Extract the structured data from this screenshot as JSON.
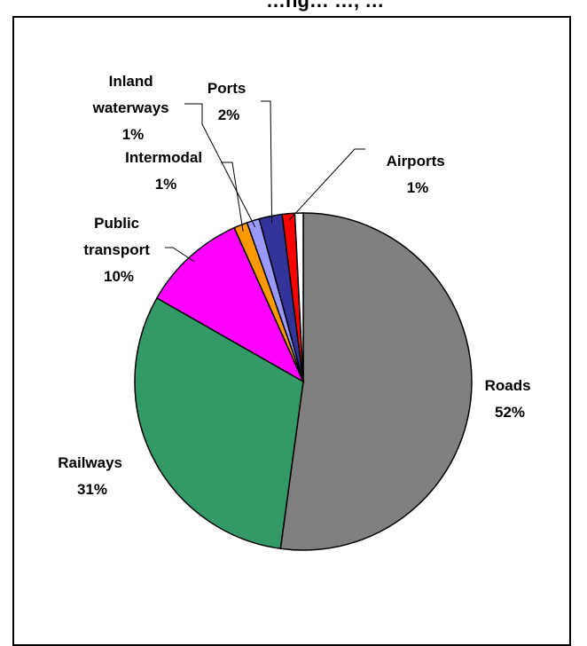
{
  "chart_data": {
    "type": "pie",
    "title": "…ng… …, …",
    "slices": [
      {
        "name": "Roads",
        "value": 52,
        "percent_label": "52%",
        "color": "#808080"
      },
      {
        "name": "Railways",
        "value": 31,
        "percent_label": "31%",
        "color": "#339966"
      },
      {
        "name": "Public transport",
        "value": 10,
        "percent_label": "10%",
        "color": "#ff00ff"
      },
      {
        "name": "Intermodal",
        "value": 1.3,
        "percent_label": "1%",
        "color": "#ff9900"
      },
      {
        "name": "Inland waterways",
        "value": 1.2,
        "percent_label": "1%",
        "color": "#9999ff"
      },
      {
        "name": "Ports",
        "value": 2.2,
        "percent_label": "2%",
        "color": "#333399"
      },
      {
        "name": "Airports",
        "value": 1.2,
        "percent_label": "1%",
        "color": "#ff0000"
      },
      {
        "name": "",
        "value": 0.8,
        "percent_label": "",
        "color": "#ffffff"
      }
    ],
    "label_lines": {
      "roads": [
        "Roads",
        "52%"
      ],
      "railways": [
        "Railways",
        "31%"
      ],
      "public_transport": [
        "Public",
        "transport",
        "10%"
      ],
      "intermodal": [
        "Intermodal",
        "1%"
      ],
      "inland_waterways": [
        "Inland",
        "waterways",
        "1%"
      ],
      "ports": [
        "Ports",
        "2%"
      ],
      "airports": [
        "Airports",
        "1%"
      ]
    },
    "legend": "none"
  }
}
